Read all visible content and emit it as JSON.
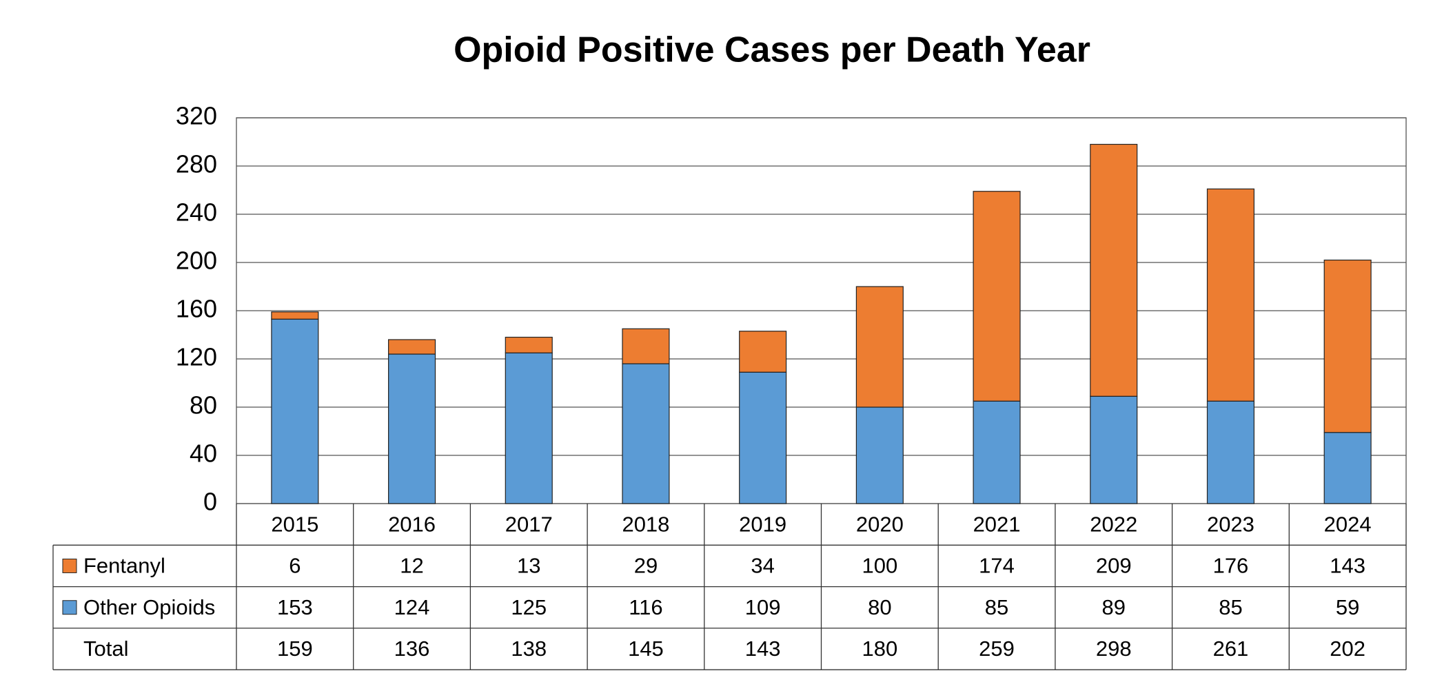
{
  "chart_data": {
    "type": "stacked_bar",
    "title": "Opioid Positive Cases per Death Year",
    "categories": [
      "2015",
      "2016",
      "2017",
      "2018",
      "2019",
      "2020",
      "2021",
      "2022",
      "2023",
      "2024"
    ],
    "series": [
      {
        "name": "Fentanyl",
        "color": "#ed7d31",
        "values": [
          6,
          12,
          13,
          29,
          34,
          100,
          174,
          209,
          176,
          143
        ]
      },
      {
        "name": "Other Opioids",
        "color": "#5b9bd5",
        "values": [
          153,
          124,
          125,
          116,
          109,
          80,
          85,
          89,
          85,
          59
        ]
      }
    ],
    "total_label": "Total",
    "totals": [
      159,
      136,
      138,
      145,
      143,
      180,
      259,
      298,
      261,
      202
    ],
    "ylim": [
      0,
      320
    ],
    "yticks": [
      0,
      40,
      80,
      120,
      160,
      200,
      240,
      280,
      320
    ],
    "grid": true
  }
}
